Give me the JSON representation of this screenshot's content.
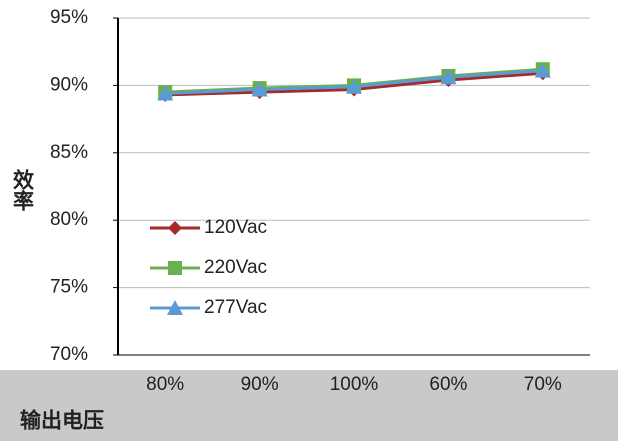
{
  "chart_data": {
    "type": "line",
    "x_label": "输出电压",
    "y_label": "效率",
    "categories": [
      "80%",
      "90%",
      "100%",
      "60%",
      "70%"
    ],
    "series": [
      {
        "name": "120Vac",
        "color": "#a52a2a",
        "marker": "diamond",
        "values": [
          89.3,
          89.5,
          89.7,
          90.4,
          90.9
        ]
      },
      {
        "name": "220Vac",
        "color": "#6ab04c",
        "marker": "square",
        "values": [
          89.5,
          89.8,
          90.0,
          90.7,
          91.2
        ]
      },
      {
        "name": "277Vac",
        "color": "#5b9bd5",
        "marker": "triangle",
        "values": [
          89.4,
          89.7,
          89.9,
          90.6,
          91.1
        ]
      }
    ],
    "ylim": [
      70,
      95
    ],
    "yticks": [
      {
        "value": 70,
        "label": "70%"
      },
      {
        "value": 75,
        "label": "75%"
      },
      {
        "value": 80,
        "label": "80%"
      },
      {
        "value": 85,
        "label": "85%"
      },
      {
        "value": 90,
        "label": "90%"
      },
      {
        "value": 95,
        "label": "95%"
      }
    ],
    "grid": true
  }
}
